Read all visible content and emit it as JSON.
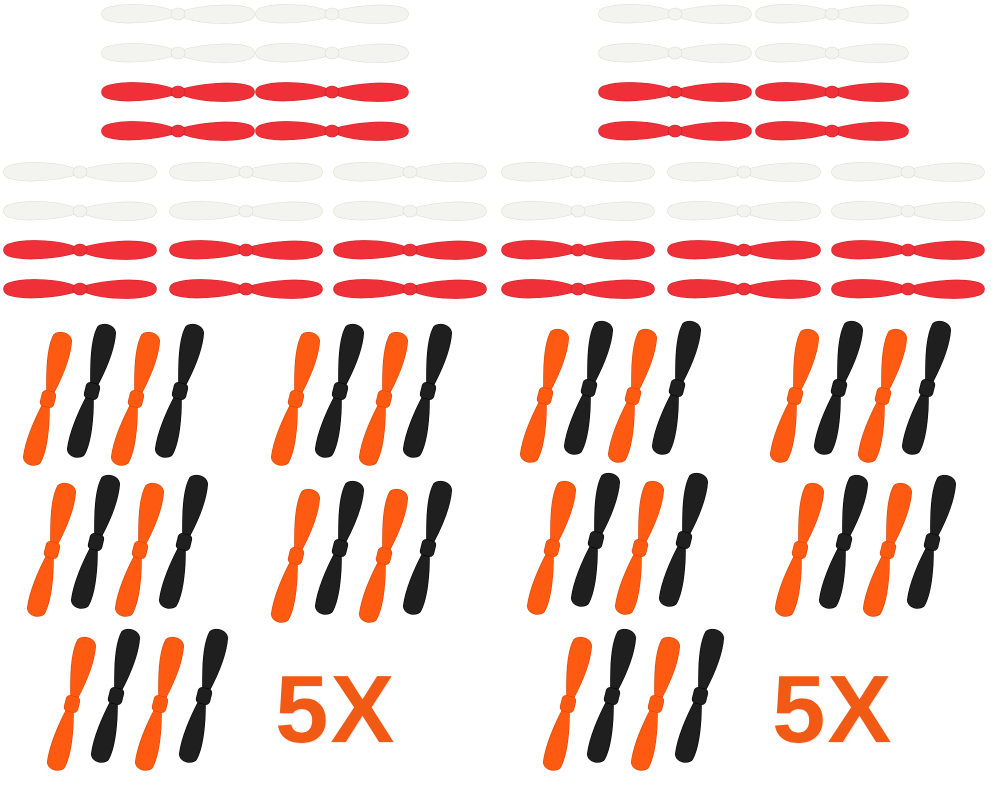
{
  "colors": {
    "background": "#ffffff",
    "white_prop": "#f3f3f0",
    "white_prop_edge": "#dcdcd6",
    "red_prop": "#f03038",
    "red_prop_edge": "#c81e26",
    "orange_prop": "#ff5a12",
    "orange_prop_edge": "#d84400",
    "black_prop": "#1f1f1f",
    "black_prop_edge": "#000000",
    "badge_text": "#f05a14"
  },
  "panels": [
    {
      "id": "left",
      "badge": {
        "text": "5X"
      }
    },
    {
      "id": "right",
      "badge": {
        "text": "5X"
      }
    }
  ],
  "content": {
    "horizontal_prop_pattern": [
      "white",
      "white",
      "red",
      "red"
    ],
    "vertical_prop_pattern": [
      "orange",
      "black",
      "orange",
      "black"
    ]
  }
}
